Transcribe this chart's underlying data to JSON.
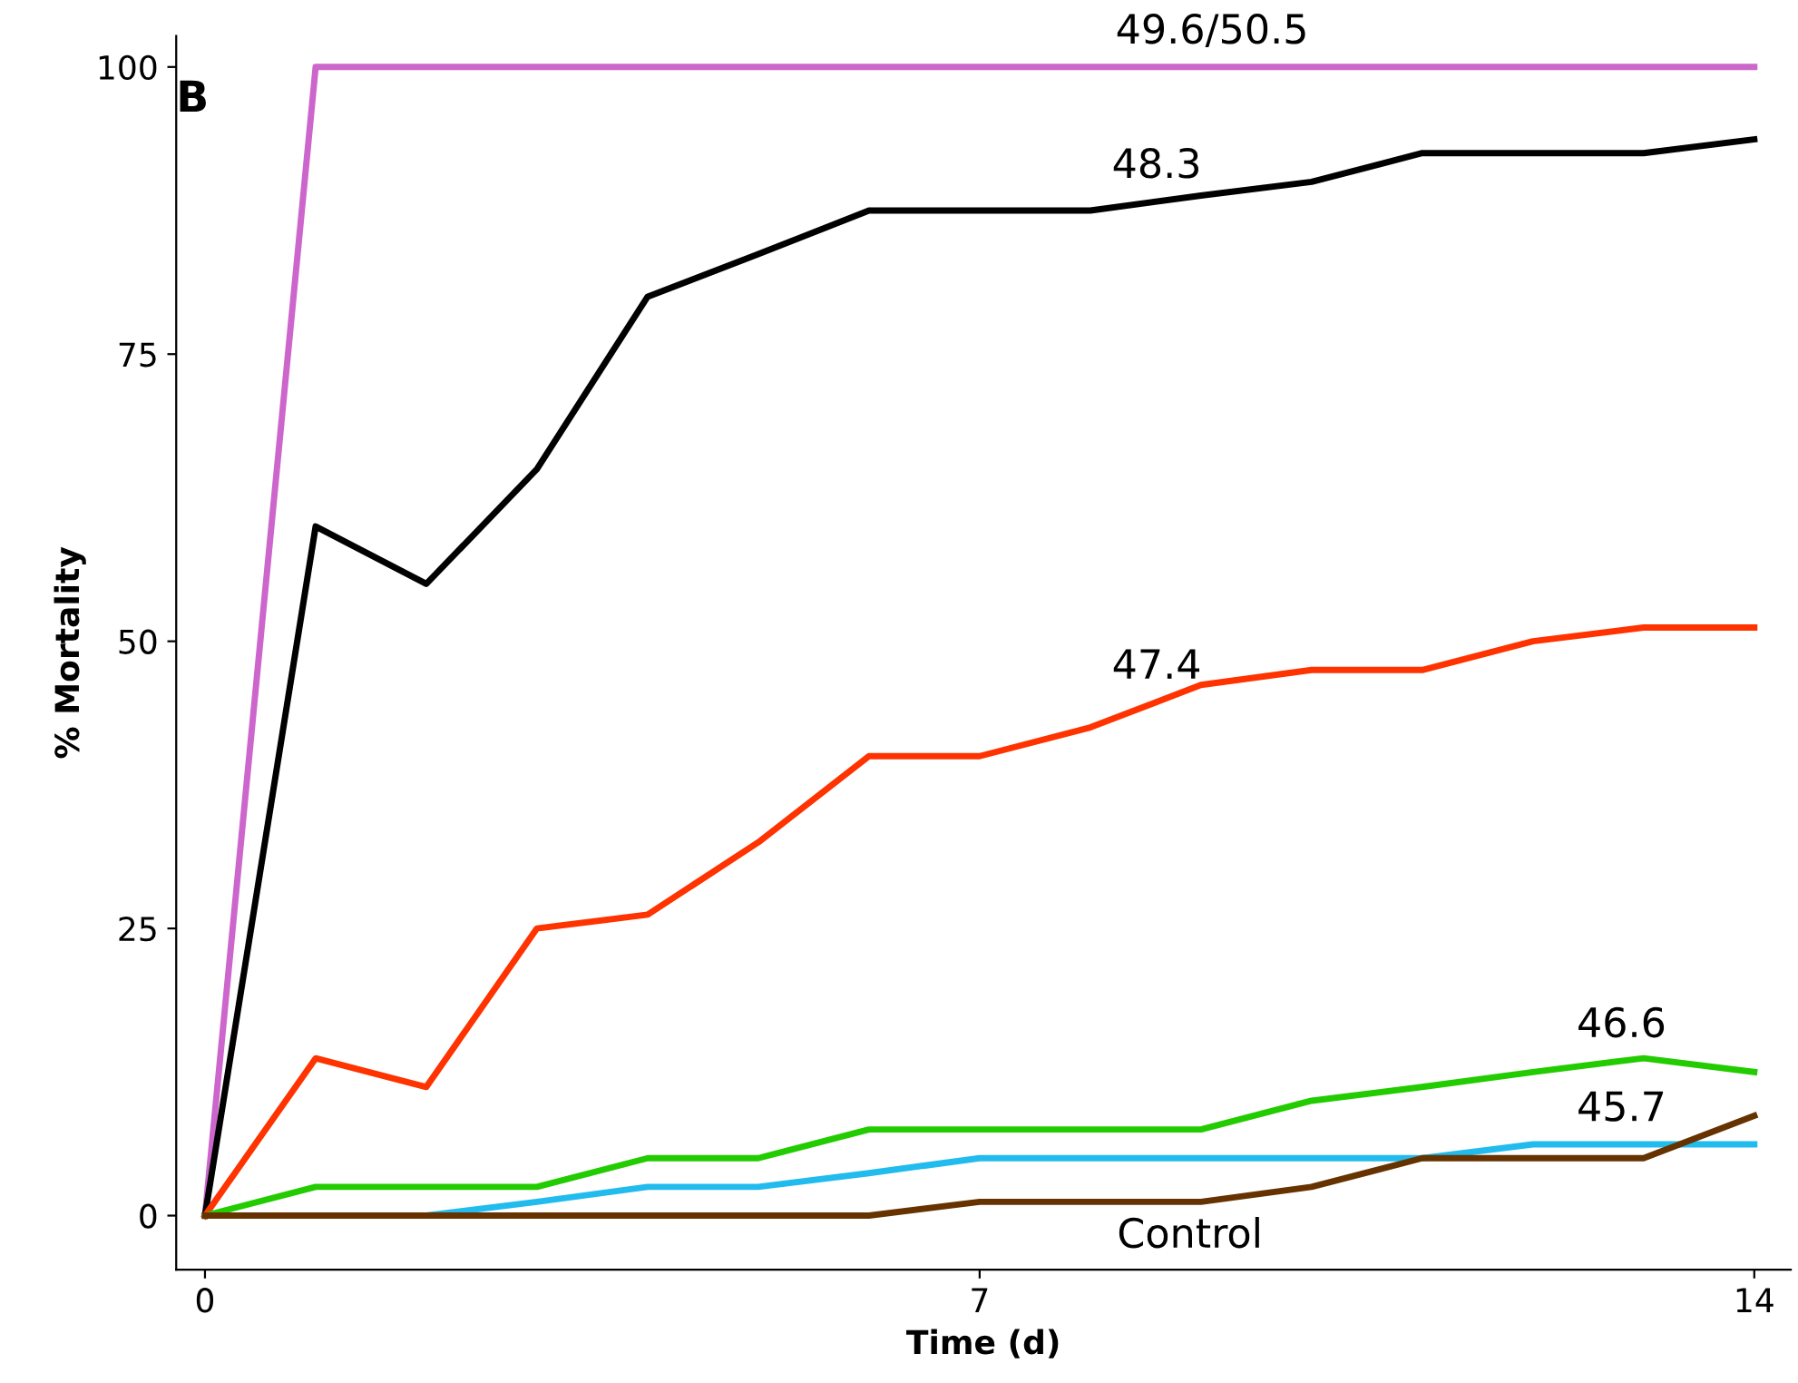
{
  "chart_data": {
    "type": "line",
    "xlabel": "Time (d)",
    "ylabel": "% Mortality",
    "x": [
      0,
      1,
      2,
      3,
      4,
      5,
      6,
      7,
      8,
      9,
      10,
      11,
      12,
      13,
      14
    ],
    "series": [
      {
        "color": "#cc66cc",
        "values": [
          0,
          100,
          100,
          100,
          100,
          100,
          100,
          100,
          100,
          100,
          100,
          100,
          100,
          100,
          100
        ]
      },
      {
        "color": "#000000",
        "values": [
          0,
          60,
          55,
          65,
          80,
          83.7,
          87.5,
          87.5,
          87.5,
          88.8,
          90,
          92.5,
          92.5,
          92.5,
          93.7
        ]
      },
      {
        "color": "#ff3300",
        "values": [
          0,
          13.7,
          11.2,
          25,
          26.2,
          32.5,
          40,
          40,
          42.5,
          46.2,
          47.5,
          47.5,
          50,
          51.2,
          51.2
        ]
      },
      {
        "color": "#22cc00",
        "values": [
          0,
          2.5,
          2.5,
          2.5,
          5,
          5,
          7.5,
          7.5,
          7.5,
          7.5,
          10,
          11.2,
          12.5,
          13.7,
          12.5
        ]
      },
      {
        "color": "#22bbee",
        "values": [
          0,
          0,
          0,
          1.2,
          2.5,
          2.5,
          3.7,
          5,
          5,
          5,
          5,
          5,
          6.2,
          6.2,
          6.2
        ]
      },
      {
        "color": "#663300",
        "values": [
          0,
          0,
          0,
          0,
          0,
          0,
          0,
          1.2,
          1.2,
          1.2,
          2.5,
          5,
          5,
          5,
          8.7
        ]
      }
    ],
    "annotations": [
      "B",
      {
        "text": "49.6/50.5",
        "x": 9.1,
        "y": 100
      },
      {
        "text": "48.3",
        "x": 8.6,
        "y": 88.3
      },
      {
        "text": "47.4",
        "x": 8.6,
        "y": 44.7
      },
      {
        "text": "46.6",
        "x": 12.8,
        "y": 13.5
      },
      {
        "text": "45.7",
        "x": 12.8,
        "y": 6.2
      },
      {
        "text": "Control",
        "x": 8.9,
        "y": 1.2
      }
    ],
    "xlim": [
      -0.26,
      14.33
    ],
    "ylim": [
      -4.7,
      102.7
    ],
    "xticks": [
      0,
      7,
      14
    ],
    "yticks": [
      0,
      25,
      50,
      75,
      100
    ],
    "grid": false,
    "legend": false,
    "marker": "none",
    "line_style": "solid"
  }
}
